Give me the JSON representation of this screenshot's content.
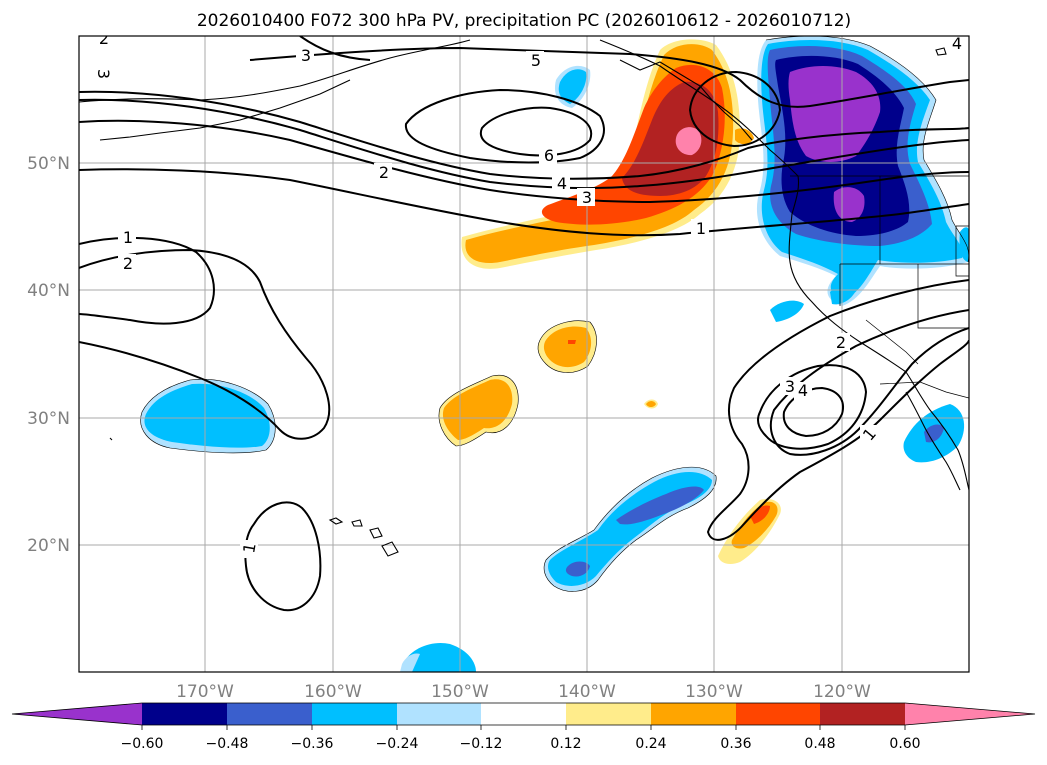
{
  "chart_data": {
    "type": "contour-map",
    "title": "2026010400 F072 300 hPa PV, precipitation PC (2026010612 - 2026010712)",
    "x_axis": {
      "range": [
        -180,
        -110
      ],
      "ticks": [
        -170,
        -160,
        -150,
        -140,
        -130,
        -120
      ],
      "tick_labels": [
        "170°W",
        "160°W",
        "150°W",
        "140°W",
        "130°W",
        "120°W"
      ]
    },
    "y_axis": {
      "range": [
        10,
        60
      ],
      "ticks": [
        20,
        30,
        40,
        50
      ],
      "tick_labels": [
        "20°N",
        "30°N",
        "40°N",
        "50°N"
      ]
    },
    "colorbar": {
      "levels": [
        -0.6,
        -0.48,
        -0.36,
        -0.24,
        -0.12,
        0.12,
        0.24,
        0.36,
        0.48,
        0.6
      ],
      "labels": [
        "−0.60",
        "−0.48",
        "−0.36",
        "−0.24",
        "−0.12",
        "0.12",
        "0.24",
        "0.36",
        "0.48",
        "0.60"
      ],
      "colors": [
        "#9932cc",
        "#00008b",
        "#3a5fcd",
        "#00bfff",
        "#b0e2ff",
        "#ffffff",
        "#ffec8b",
        "#ffa500",
        "#ff4500",
        "#b22222",
        "#ff82ab"
      ],
      "extend": "both"
    },
    "pv_contour_labels": [
      "1",
      "2",
      "3",
      "4",
      "5",
      "6"
    ],
    "pv_contours": [
      {
        "level": 1,
        "note": "north Pacific jet, ~44-46N"
      },
      {
        "level": 2,
        "note": "north Pacific jet, ~48N"
      },
      {
        "level": 3,
        "note": "north Pacific jet, ~47N"
      },
      {
        "level": 4,
        "note": "north Pacific jet, ~48N"
      },
      {
        "level": 5,
        "note": "closed ridge region ~54-56N 145W"
      },
      {
        "level": 6,
        "note": "closed contour ~52N 145W"
      },
      {
        "level": 1,
        "note": "cutoff low lobe ~30N 124W"
      },
      {
        "level": 2,
        "note": "cutoff low ~32N 122W"
      },
      {
        "level": 3,
        "note": "cutoff low ~31N 123W"
      },
      {
        "level": 4,
        "note": "cutoff low ~31N 122W"
      },
      {
        "level": 1,
        "note": "closed contour ~18N 166W"
      },
      {
        "level": 1,
        "note": "western lobe ~43N 178W"
      },
      {
        "level": 2,
        "note": "western lobe ~42N 177W"
      }
    ],
    "precip_pc_features": [
      {
        "sign": "positive",
        "max": 0.6,
        "region": "Gulf of Alaska / coast of British Columbia, 43-58N 150-128W"
      },
      {
        "sign": "negative",
        "min": -0.6,
        "region": "Pacific Northwest interior, 42-58N 125-112W"
      },
      {
        "sign": "negative",
        "min": -0.36,
        "region": "30N 165W"
      },
      {
        "sign": "positive",
        "max": 0.36,
        "region": "36N 141W"
      },
      {
        "sign": "positive",
        "max": 0.24,
        "region": "31N 148W"
      },
      {
        "sign": "negative",
        "min": -0.36,
        "region": "subtropics 17-26N 143-129W"
      },
      {
        "sign": "positive",
        "max": 0.36,
        "region": "21N 127W"
      },
      {
        "sign": "negative",
        "min": -0.36,
        "region": "Baja California 29N 114W"
      }
    ]
  }
}
